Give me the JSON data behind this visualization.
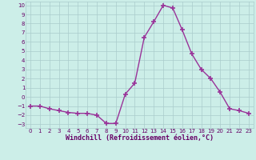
{
  "x": [
    0,
    1,
    2,
    3,
    4,
    5,
    6,
    7,
    8,
    9,
    10,
    11,
    12,
    13,
    14,
    15,
    16,
    17,
    18,
    19,
    20,
    21,
    22,
    23
  ],
  "y": [
    -1,
    -1,
    -1.3,
    -1.5,
    -1.7,
    -1.8,
    -1.8,
    -2.0,
    -2.9,
    -2.9,
    0.3,
    1.5,
    6.5,
    8.2,
    10.0,
    9.7,
    7.3,
    4.7,
    3.0,
    2.0,
    0.5,
    -1.3,
    -1.5,
    -1.8
  ],
  "line_color": "#993399",
  "marker": "+",
  "marker_size": 4,
  "linewidth": 1.0,
  "xlabel": "Windchill (Refroidissement éolien,°C)",
  "xlabel_fontsize": 6,
  "ylim": [
    -3.4,
    10.4
  ],
  "xlim": [
    -0.5,
    23.5
  ],
  "yticks": [
    -3,
    -2,
    -1,
    0,
    1,
    2,
    3,
    4,
    5,
    6,
    7,
    8,
    9,
    10
  ],
  "xticks": [
    0,
    1,
    2,
    3,
    4,
    5,
    6,
    7,
    8,
    9,
    10,
    11,
    12,
    13,
    14,
    15,
    16,
    17,
    18,
    19,
    20,
    21,
    22,
    23
  ],
  "background_color": "#cceee8",
  "grid_color": "#aacccc",
  "tick_fontsize": 5,
  "tick_color": "#660066",
  "xlabel_color": "#660066"
}
